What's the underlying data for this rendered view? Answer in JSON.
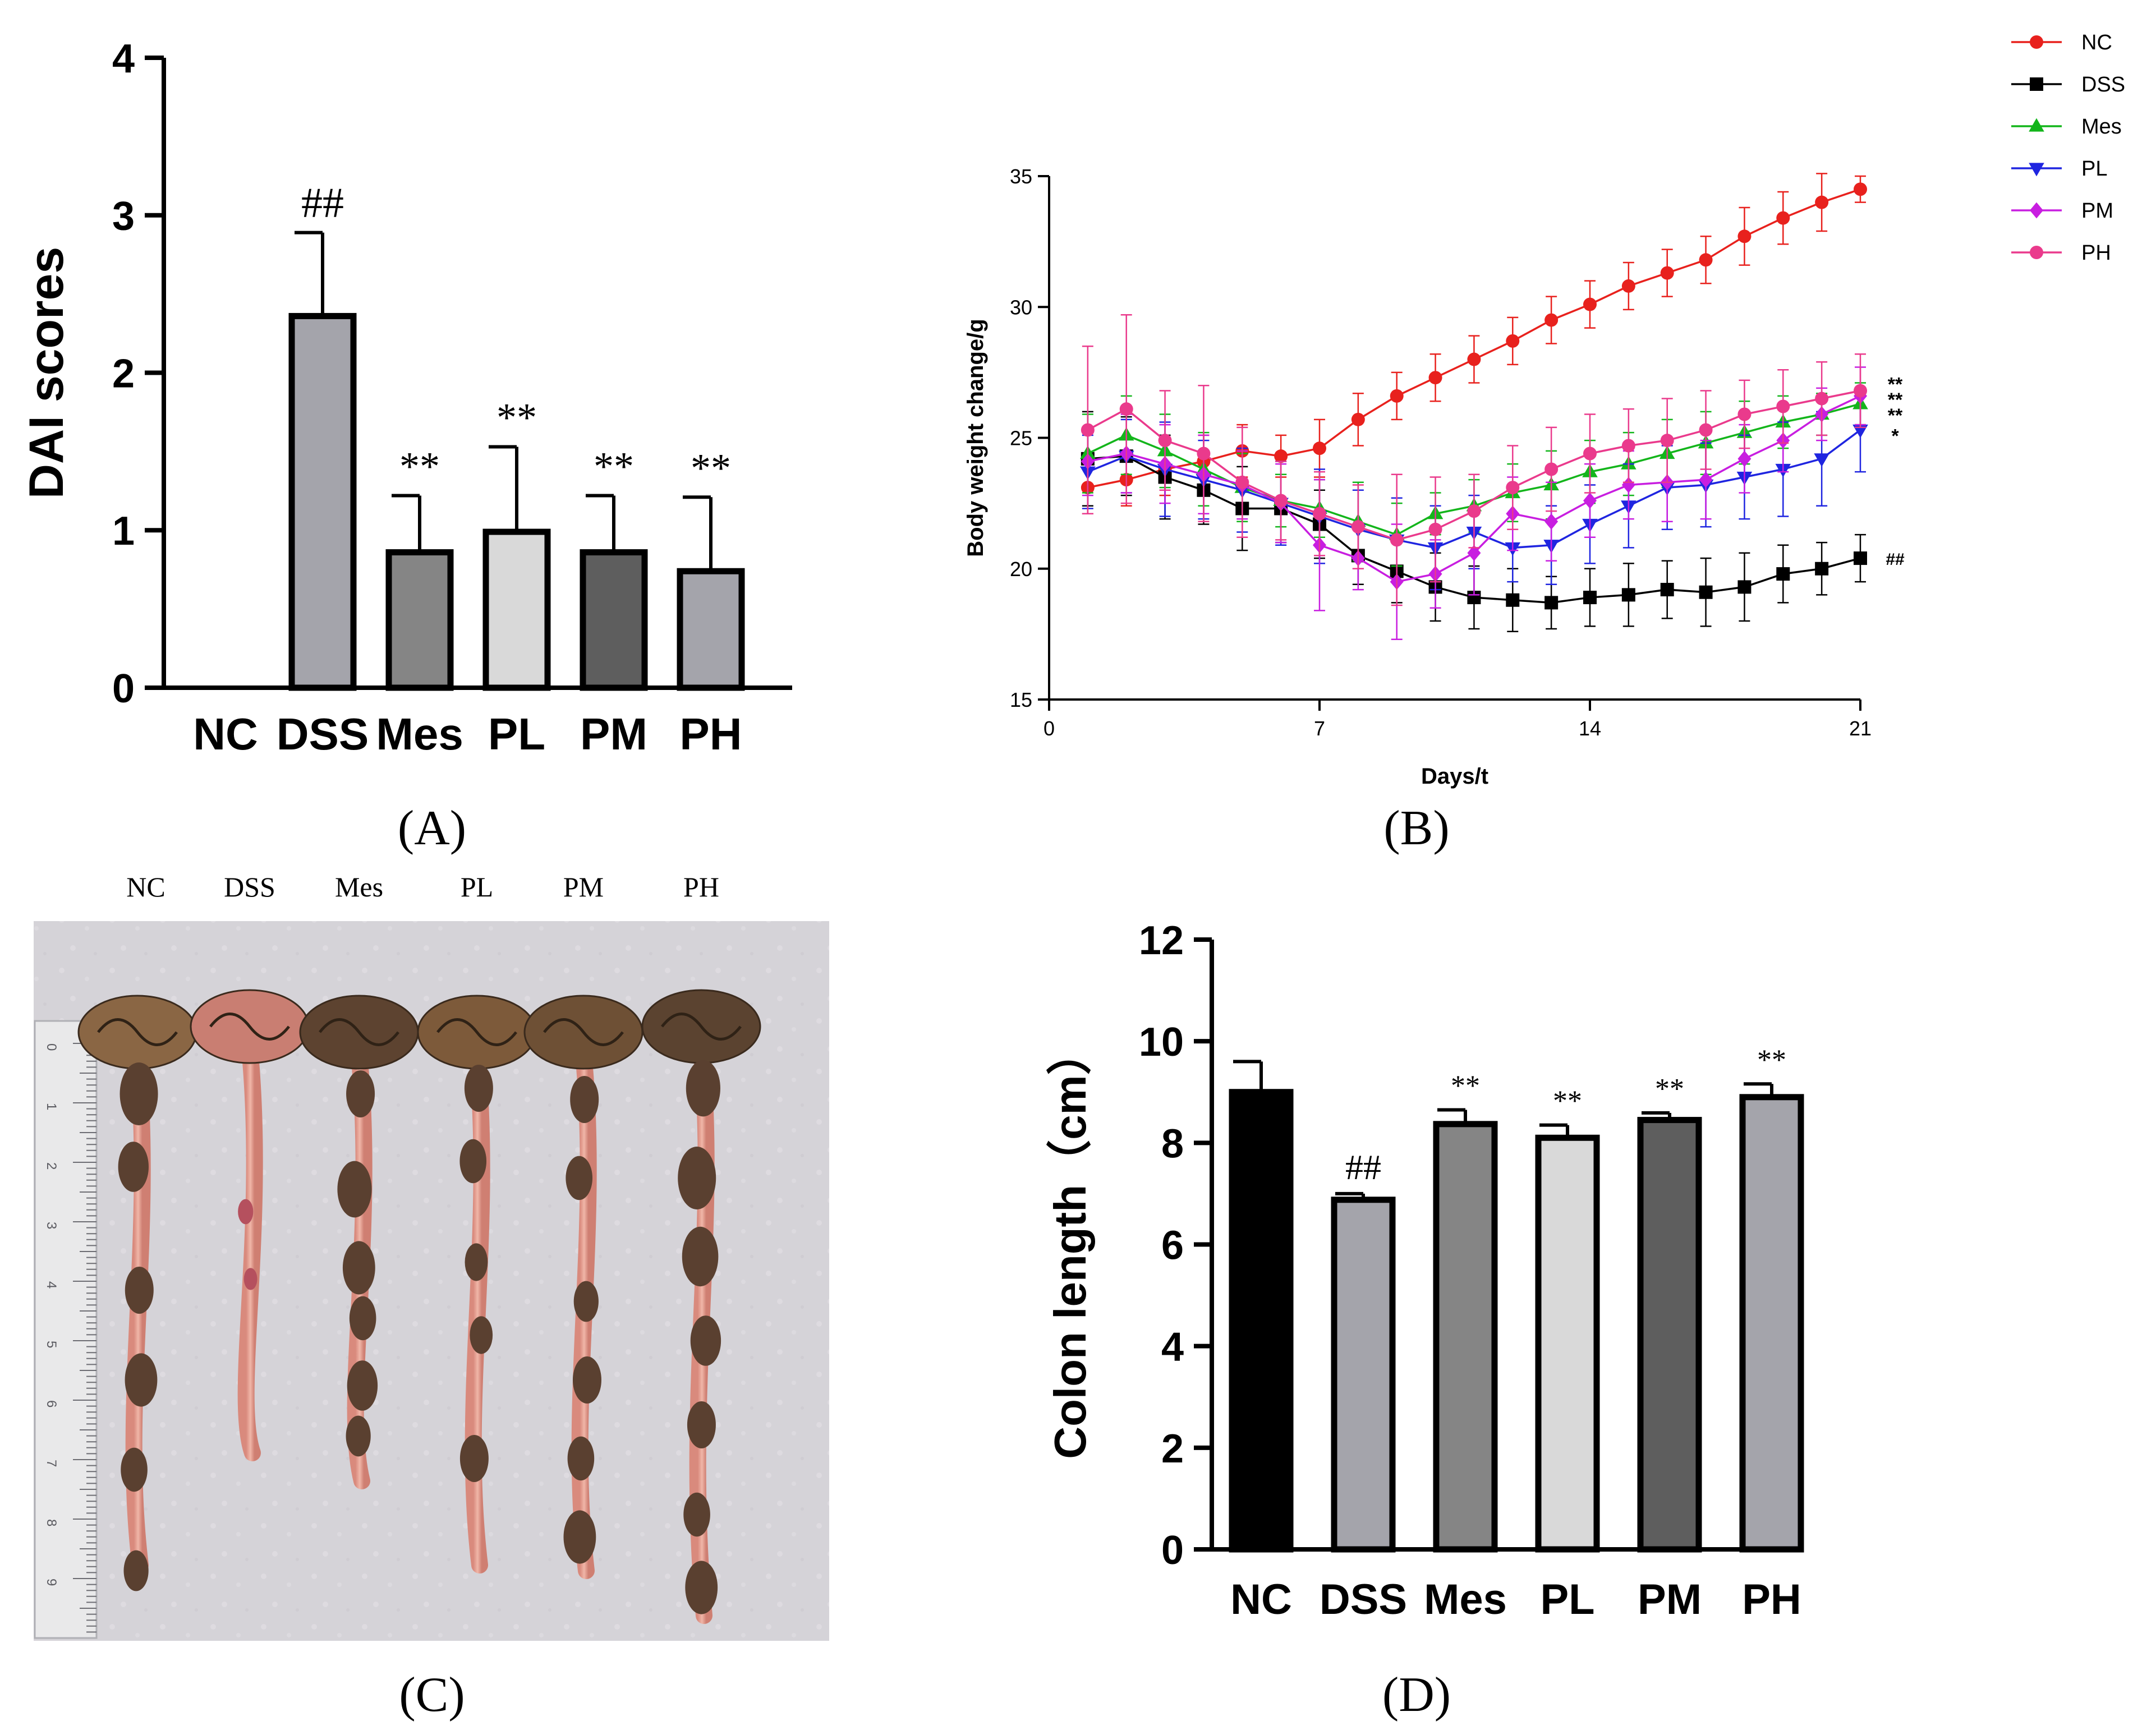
{
  "panels": {
    "A": {
      "caption": "(A)"
    },
    "B": {
      "caption": "(B)"
    },
    "C": {
      "caption": "(C)",
      "photo_labels": [
        "NC",
        "DSS",
        "Mes",
        "PL",
        "PM",
        "PH"
      ],
      "ruler_ticks": [
        "0",
        "1",
        "2",
        "3",
        "4",
        "5",
        "6",
        "7",
        "8",
        "9"
      ]
    },
    "D": {
      "caption": "(D)"
    }
  },
  "chart_data": [
    {
      "id": "A",
      "type": "bar",
      "title": "",
      "ylabel": "DAI scores",
      "xlabel": "",
      "ylim": [
        0,
        4
      ],
      "yticks": [
        "0",
        "1",
        "2",
        "3",
        "4"
      ],
      "categories": [
        "NC",
        "DSS",
        "Mes",
        "PL",
        "PM",
        "PH"
      ],
      "values": [
        0,
        2.36,
        0.86,
        0.99,
        0.86,
        0.74
      ],
      "errors": [
        0,
        0.53,
        0.36,
        0.54,
        0.36,
        0.47
      ],
      "annotations": [
        "",
        "##",
        "**",
        "**",
        "**",
        "**"
      ],
      "colors": [
        "#ffffff",
        "#a4a4ab",
        "#858585",
        "#d9d9d9",
        "#5e5e5e",
        "#a4a4ab"
      ]
    },
    {
      "id": "B",
      "type": "line",
      "title": "",
      "xlabel": "Days/t",
      "ylabel": "Body weight change/g",
      "xlim": [
        0,
        21
      ],
      "ylim": [
        15,
        35
      ],
      "xticks": [
        "0",
        "7",
        "14",
        "21"
      ],
      "yticks": [
        "15",
        "20",
        "25",
        "30",
        "35"
      ],
      "x": [
        1,
        2,
        3,
        4,
        5,
        6,
        7,
        8,
        9,
        10,
        11,
        12,
        13,
        14,
        15,
        16,
        17,
        18,
        19,
        20,
        21
      ],
      "legend_position": "top-right",
      "series": [
        {
          "name": "NC",
          "color": "#e8211d",
          "marker": "circle",
          "values": [
            23.1,
            23.4,
            23.8,
            24.1,
            24.5,
            24.3,
            24.6,
            25.7,
            26.6,
            27.3,
            28.0,
            28.7,
            29.5,
            30.1,
            30.8,
            31.3,
            31.8,
            32.7,
            33.4,
            34.0,
            34.5
          ],
          "errors": [
            1.0,
            1.0,
            1.0,
            1.0,
            1.0,
            0.8,
            1.1,
            1.0,
            0.9,
            0.9,
            0.9,
            0.9,
            0.9,
            0.9,
            0.9,
            0.9,
            0.9,
            1.1,
            1.0,
            1.1,
            0.5
          ],
          "annotation": ""
        },
        {
          "name": "DSS",
          "color": "#000000",
          "marker": "square",
          "values": [
            24.2,
            24.3,
            23.5,
            23.0,
            22.3,
            22.3,
            21.7,
            20.5,
            19.9,
            19.3,
            18.9,
            18.8,
            18.7,
            18.9,
            19.0,
            19.2,
            19.1,
            19.3,
            19.8,
            20.0,
            20.4
          ],
          "errors": [
            1.8,
            1.5,
            1.6,
            1.3,
            1.6,
            1.3,
            1.3,
            1.1,
            1.2,
            1.3,
            1.2,
            1.2,
            1.0,
            1.1,
            1.2,
            1.1,
            1.3,
            1.3,
            1.1,
            1.0,
            0.9
          ],
          "annotation": "##"
        },
        {
          "name": "Mes",
          "color": "#13b51b",
          "marker": "triangle-up",
          "values": [
            24.4,
            25.1,
            24.5,
            23.8,
            23.1,
            22.6,
            22.3,
            21.8,
            21.3,
            22.1,
            22.4,
            22.9,
            23.2,
            23.7,
            24.0,
            24.4,
            24.8,
            25.2,
            25.6,
            25.9,
            26.3
          ],
          "errors": [
            1.5,
            1.5,
            1.4,
            1.4,
            1.3,
            1.0,
            1.1,
            1.5,
            1.2,
            0.8,
            1.0,
            1.1,
            1.3,
            1.2,
            1.2,
            1.3,
            1.2,
            1.2,
            1.0,
            0.8,
            0.8
          ],
          "annotation": "**"
        },
        {
          "name": "PL",
          "color": "#1f25e0",
          "marker": "triangle-down",
          "values": [
            23.7,
            24.3,
            23.8,
            23.4,
            23.0,
            22.5,
            22.0,
            21.5,
            21.1,
            20.8,
            21.4,
            20.8,
            20.9,
            21.7,
            22.4,
            23.1,
            23.2,
            23.5,
            23.8,
            24.2,
            25.3
          ],
          "errors": [
            1.4,
            1.4,
            1.8,
            1.5,
            1.6,
            1.6,
            1.8,
            1.5,
            1.6,
            1.6,
            1.4,
            1.3,
            1.5,
            1.5,
            1.6,
            1.6,
            1.6,
            1.6,
            1.8,
            1.8,
            1.6
          ],
          "annotation": "*"
        },
        {
          "name": "PM",
          "color": "#c81ee0",
          "marker": "diamond",
          "values": [
            24.1,
            24.4,
            24.0,
            23.6,
            23.2,
            22.5,
            20.9,
            20.4,
            19.5,
            19.8,
            20.6,
            22.1,
            21.8,
            22.6,
            23.2,
            23.3,
            23.4,
            24.2,
            24.9,
            25.9,
            26.6
          ],
          "errors": [
            1.3,
            1.5,
            1.5,
            1.5,
            1.3,
            1.5,
            2.5,
            1.2,
            2.2,
            1.3,
            1.6,
            1.4,
            1.5,
            1.4,
            1.3,
            1.5,
            1.5,
            1.3,
            1.2,
            1.0,
            1.1
          ],
          "annotation": "**"
        },
        {
          "name": "PH",
          "color": "#ea3a8c",
          "marker": "circle",
          "values": [
            25.3,
            26.1,
            24.9,
            24.4,
            23.3,
            22.6,
            22.1,
            21.6,
            21.1,
            21.5,
            22.2,
            23.1,
            23.8,
            24.4,
            24.7,
            24.9,
            25.3,
            25.9,
            26.2,
            26.5,
            26.8
          ],
          "errors": [
            3.2,
            3.6,
            1.9,
            2.6,
            2.1,
            1.5,
            1.6,
            1.6,
            2.5,
            2.0,
            1.4,
            1.6,
            1.6,
            1.5,
            1.4,
            1.6,
            1.5,
            1.3,
            1.4,
            1.4,
            1.4
          ],
          "annotation": "**"
        }
      ]
    },
    {
      "id": "D",
      "type": "bar",
      "title": "",
      "ylabel": "Colon length（cm）",
      "xlabel": "",
      "ylim": [
        0,
        12
      ],
      "yticks": [
        "0",
        "2",
        "4",
        "6",
        "8",
        "10",
        "12"
      ],
      "categories": [
        "NC",
        "DSS",
        "Mes",
        "PL",
        "PM",
        "PH"
      ],
      "values": [
        9.0,
        6.88,
        8.37,
        8.1,
        8.45,
        8.9
      ],
      "errors": [
        0.6,
        0.12,
        0.28,
        0.25,
        0.14,
        0.26
      ],
      "annotations": [
        "",
        "##",
        "**",
        "**",
        "**",
        "**"
      ],
      "colors": [
        "#000000",
        "#a4a4ab",
        "#858585",
        "#d9d9d9",
        "#5e5e5e",
        "#a4a4ab"
      ]
    }
  ]
}
